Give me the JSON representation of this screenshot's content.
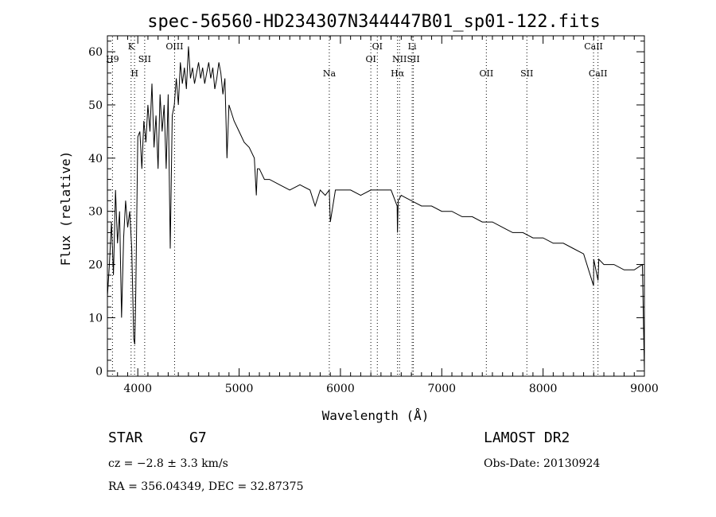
{
  "chart_data": {
    "type": "line",
    "title": "spec-56560-HD234307N344447B01_sp01-122.fits",
    "xlabel": "Wavelength (Å)",
    "ylabel": "Flux (relative)",
    "xlim": [
      3700,
      9000
    ],
    "ylim": [
      -1,
      63
    ],
    "x_ticks": [
      4000,
      5000,
      6000,
      7000,
      8000,
      9000
    ],
    "y_ticks": [
      0,
      10,
      20,
      30,
      40,
      50,
      60
    ],
    "grid": false,
    "series": [
      {
        "x": [
          3700,
          3720,
          3740,
          3760,
          3780,
          3800,
          3820,
          3840,
          3860,
          3880,
          3900,
          3920,
          3940,
          3960,
          3970,
          3980,
          4000,
          4020,
          4040,
          4060,
          4080,
          4100,
          4120,
          4140,
          4160,
          4180,
          4200,
          4220,
          4240,
          4260,
          4280,
          4300,
          4320,
          4340,
          4360,
          4380,
          4400,
          4420,
          4440,
          4460,
          4480,
          4500,
          4520,
          4540,
          4560,
          4580,
          4600,
          4620,
          4640,
          4660,
          4680,
          4700,
          4720,
          4740,
          4760,
          4780,
          4800,
          4820,
          4840,
          4860,
          4880,
          4900,
          4950,
          5000,
          5050,
          5100,
          5150,
          5170,
          5180,
          5200,
          5250,
          5300,
          5400,
          5500,
          5600,
          5700,
          5750,
          5800,
          5850,
          5890,
          5900,
          5950,
          6000,
          6100,
          6200,
          6300,
          6400,
          6500,
          6560,
          6563,
          6570,
          6600,
          6700,
          6800,
          6900,
          7000,
          7100,
          7200,
          7300,
          7400,
          7500,
          7600,
          7700,
          7800,
          7900,
          8000,
          8100,
          8200,
          8300,
          8400,
          8498,
          8500,
          8542,
          8550,
          8600,
          8662,
          8700,
          8800,
          8900,
          8980,
          8990,
          9000
        ],
        "y": [
          14,
          20,
          28,
          18,
          34,
          24,
          30,
          10,
          25,
          32,
          27,
          30,
          23,
          6,
          5,
          15,
          44,
          45,
          38,
          47,
          43,
          50,
          45,
          54,
          42,
          48,
          38,
          52,
          45,
          50,
          38,
          52,
          23,
          48,
          50,
          55,
          50,
          58,
          54,
          57,
          53,
          61,
          55,
          57,
          54,
          56,
          58,
          55,
          57,
          54,
          56,
          58,
          55,
          57,
          53,
          55,
          58,
          56,
          52,
          55,
          40,
          50,
          47,
          45,
          43,
          42,
          40,
          33,
          38,
          38,
          36,
          36,
          35,
          34,
          35,
          34,
          31,
          34,
          33,
          34,
          28,
          34,
          34,
          34,
          33,
          34,
          34,
          34,
          31,
          26,
          32,
          33,
          32,
          31,
          31,
          30,
          30,
          29,
          29,
          28,
          28,
          27,
          26,
          26,
          25,
          25,
          24,
          24,
          23,
          22,
          16,
          21,
          17,
          21,
          20,
          20,
          20,
          19,
          19,
          20,
          10,
          0
        ]
      }
    ],
    "lines": [
      {
        "x": 3750,
        "label": "H9",
        "row": 2
      },
      {
        "x": 3934,
        "label": "K",
        "row": 1
      },
      {
        "x": 3968,
        "label": "H",
        "row": 3
      },
      {
        "x": 4068,
        "label": "SII",
        "row": 2
      },
      {
        "x": 4363,
        "label": "OIII",
        "row": 1
      },
      {
        "x": 5890,
        "label": "Na",
        "row": 3
      },
      {
        "x": 6300,
        "label": "OI",
        "row": 2
      },
      {
        "x": 6364,
        "label": "OI",
        "row": 1
      },
      {
        "x": 6563,
        "label": "Hα",
        "row": 3
      },
      {
        "x": 6583,
        "label": "NII",
        "row": 2
      },
      {
        "x": 6708,
        "label": "Li",
        "row": 1
      },
      {
        "x": 6720,
        "label": "SII",
        "row": 2
      },
      {
        "x": 7440,
        "label": "OII",
        "row": 3
      },
      {
        "x": 7840,
        "label": "SII",
        "row": 3
      },
      {
        "x": 8498,
        "label": "CaII",
        "row": 1
      },
      {
        "x": 8542,
        "label": "CaII",
        "row": 3
      }
    ]
  },
  "info": {
    "class_label": "STAR",
    "subclass": "G7",
    "survey": "LAMOST DR2",
    "cz": "cz = −2.8 ± 3.3 km/s",
    "obs_date": "Obs-Date: 20130924",
    "coords": "RA = 356.04349, DEC =  32.87375"
  }
}
